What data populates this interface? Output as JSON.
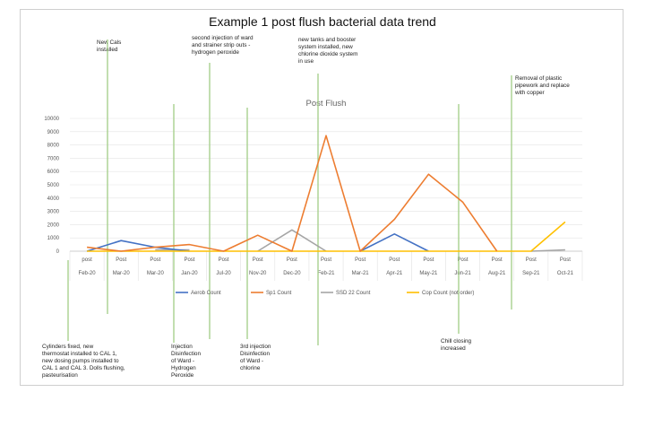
{
  "page_title": "Example 1 post flush bacterial data trend",
  "notes": [
    {
      "id": "new-cals",
      "text": "New Cals\ninstalled"
    },
    {
      "id": "second-injection",
      "text": "second injection of ward\nand strainer strip outs -\nhydrogen peroxide"
    },
    {
      "id": "new-tanks",
      "text": "new tanks and booster\nsystem installed, new\nchlorine dioxide system\nin use"
    },
    {
      "id": "removal-plastic",
      "text": "Removal of plastic\npipework and replace\nwith copper"
    },
    {
      "id": "cylinders-fixed",
      "text": "Cylinders fixed, new\nthermostat installed to CAL 1,\nnew dosing pumps installed to\nCAL 1 and CAL 3. Dolls flushing,\npasteurisation"
    },
    {
      "id": "injection-disinfection",
      "text": "Injection\nDisinfection\nof Ward -\nHydrogen\nPeroxide"
    },
    {
      "id": "third-injection",
      "text": "3rd injection\nDisinfection\nof Ward -\nchlorine"
    },
    {
      "id": "chill-closing",
      "text": "Chill closing\nincreased"
    }
  ],
  "colors": {
    "aero": "#4472c4",
    "sp1": "#ed7d31",
    "ss": "#a5a5a5",
    "cop": "#ffc000",
    "marker": "#a9d18e",
    "grid": "#e3e3e3"
  },
  "chart_data": {
    "type": "line",
    "title": "Post Flush",
    "categories": [
      [
        "post",
        "Feb-20"
      ],
      [
        "Post",
        "Mar-20"
      ],
      [
        "Post",
        "Mar-20"
      ],
      [
        "Post",
        "Jan-20"
      ],
      [
        "Post",
        "Jul-20"
      ],
      [
        "Post",
        "Nov-20"
      ],
      [
        "Post",
        "Dec-20"
      ],
      [
        "Post",
        "Feb-21"
      ],
      [
        "Post",
        "Mar-21"
      ],
      [
        "Post",
        "Apr-21"
      ],
      [
        "Post",
        "May-21"
      ],
      [
        "Post",
        "Jun-21"
      ],
      [
        "Post",
        "Aug-21"
      ],
      [
        "Post",
        "Sep-21"
      ],
      [
        "Post",
        "Oct-21"
      ]
    ],
    "y_ticks": [
      0,
      1000,
      2000,
      3000,
      4000,
      5000,
      6000,
      7000,
      8000,
      9000,
      10000
    ],
    "ylim": [
      0,
      10000
    ],
    "grid": true,
    "legend_position": "bottom",
    "series": [
      {
        "name": "Aerob Count",
        "color_key": "aero",
        "values": [
          0,
          800,
          300,
          0,
          null,
          null,
          null,
          null,
          0,
          1300,
          0,
          null,
          null,
          null,
          null
        ]
      },
      {
        "name": "Sp1 Count",
        "color_key": "sp1",
        "values": [
          300,
          0,
          300,
          500,
          0,
          1200,
          0,
          8700,
          0,
          2400,
          5800,
          3700,
          0,
          null,
          null
        ]
      },
      {
        "name": "SSD 22 Count",
        "color_key": "ss",
        "values": [
          null,
          null,
          100,
          100,
          null,
          0,
          1600,
          0,
          null,
          null,
          null,
          null,
          null,
          0,
          100
        ]
      },
      {
        "name": "Cop Count (not order)",
        "color_key": "cop",
        "values": [
          0,
          0,
          0,
          0,
          0,
          0,
          0,
          0,
          0,
          0,
          0,
          0,
          0,
          0,
          2200
        ]
      }
    ]
  }
}
